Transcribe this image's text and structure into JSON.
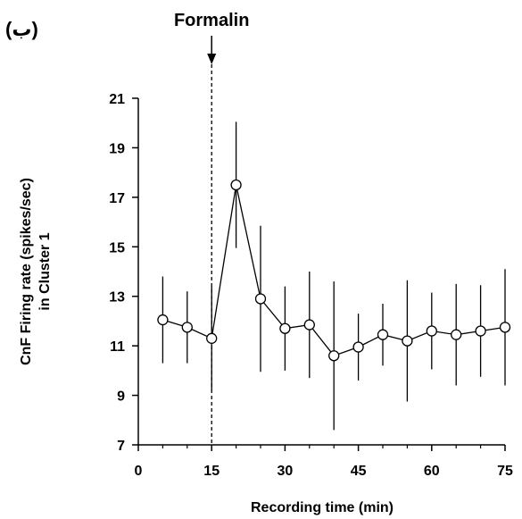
{
  "panel_label": "(ب)",
  "chart_data": {
    "type": "line",
    "x": [
      5,
      10,
      15,
      20,
      25,
      30,
      35,
      40,
      45,
      50,
      55,
      60,
      65,
      70,
      75
    ],
    "series": [
      {
        "values": [
          12.05,
          11.75,
          11.3,
          17.5,
          12.9,
          11.7,
          11.85,
          10.6,
          10.95,
          11.45,
          11.2,
          11.6,
          11.45,
          11.6,
          11.75
        ],
        "error": [
          1.75,
          1.45,
          2.1,
          2.55,
          2.95,
          1.7,
          2.15,
          3.0,
          1.35,
          1.25,
          2.45,
          1.55,
          2.05,
          1.85,
          2.35
        ],
        "color": "#000000",
        "marker": "open-circle"
      }
    ],
    "xlabel": "Recording time (min)",
    "ylabel_lines": [
      "CnF Firing rate (spikes/sec)",
      "in Cluster 1"
    ],
    "xlim": [
      0,
      75
    ],
    "ylim": [
      7,
      21
    ],
    "xticks": [
      0,
      15,
      30,
      45,
      60,
      75
    ],
    "xtick_labels": [
      "0",
      "15",
      "30",
      "45",
      "60",
      "75"
    ],
    "xminor_ticks": [
      5,
      10,
      20,
      25,
      35,
      40,
      50,
      55,
      65,
      70
    ],
    "yticks": [
      7,
      9,
      11,
      13,
      15,
      17,
      19,
      21
    ],
    "ytick_labels": [
      "7",
      "9",
      "11",
      "13",
      "15",
      "17",
      "19",
      "21"
    ],
    "grid": false,
    "annotations": [
      {
        "text": "Formalin",
        "x": 15,
        "style": "arrow-with-dashed-line"
      }
    ]
  }
}
